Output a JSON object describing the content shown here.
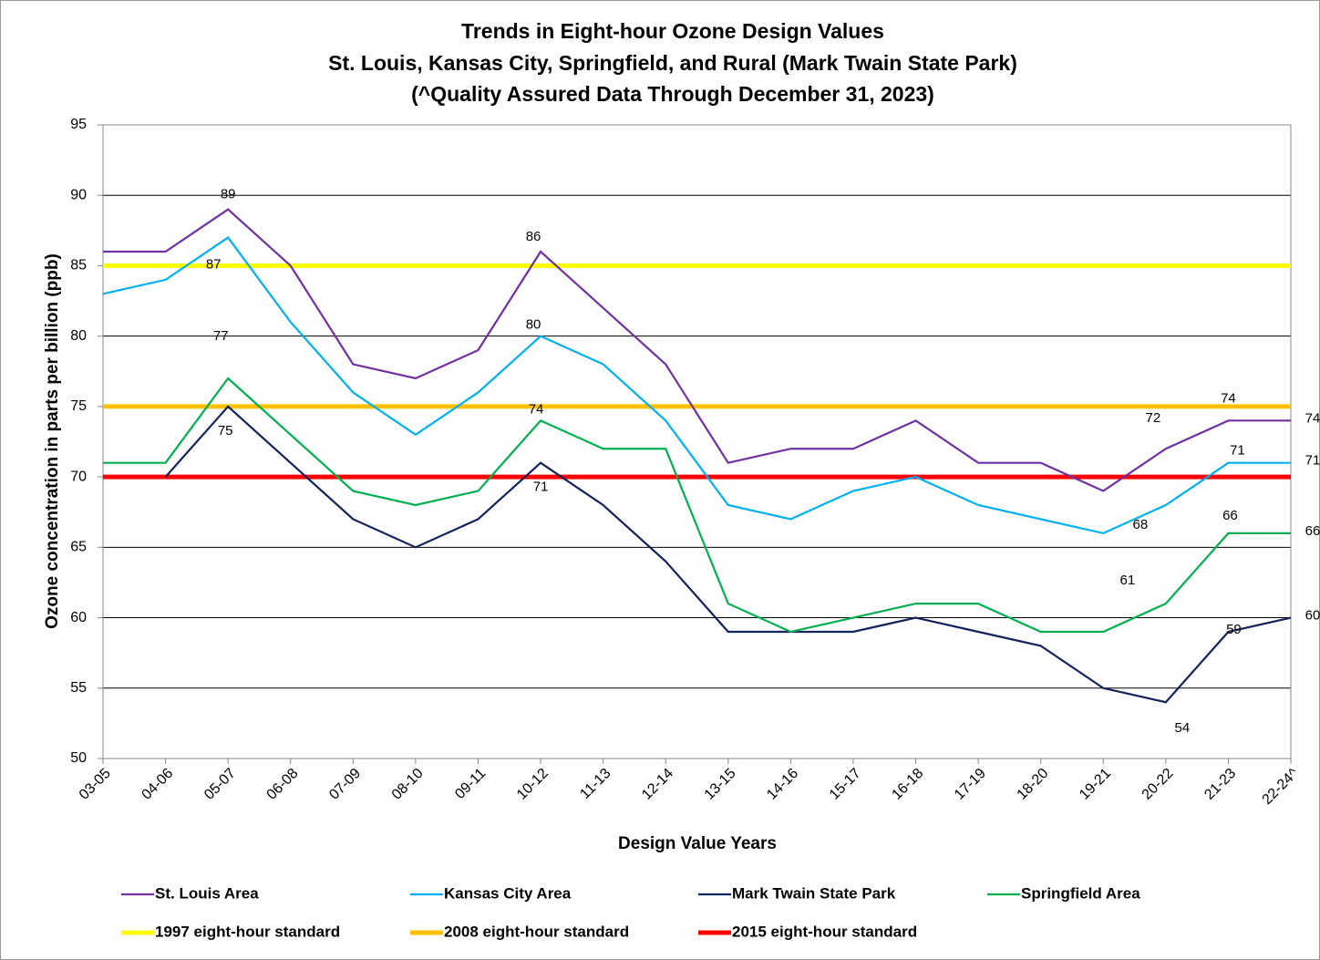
{
  "chart_data": {
    "type": "line",
    "title": [
      "Trends in Eight-hour Ozone Design Values",
      "St. Louis, Kansas City, Springfield, and Rural (Mark Twain State Park)",
      "(^Quality Assured Data Through December 31, 2023)"
    ],
    "x_label": "Design Value Years",
    "y_label": "Ozone concentration in parts per billion (ppb)",
    "categories": [
      "03-05",
      "04-06",
      "05-07",
      "06-08",
      "07-09",
      "08-10",
      "09-11",
      "10-12",
      "11-13",
      "12-14",
      "13-15",
      "14-16",
      "15-17",
      "16-18",
      "17-19",
      "18-20",
      "19-21",
      "20-22",
      "21-23",
      "22-24^"
    ],
    "series": [
      {
        "name": "St. Louis Area",
        "color": "#7030a0",
        "values": [
          86,
          86,
          89,
          85,
          78,
          77,
          79,
          86,
          82,
          78,
          71,
          72,
          72,
          74,
          71,
          71,
          69,
          72,
          74,
          74
        ]
      },
      {
        "name": "Kansas City Area",
        "color": "#00b0f0",
        "values": [
          83,
          84,
          87,
          81,
          76,
          73,
          76,
          80,
          78,
          74,
          68,
          67,
          69,
          70,
          68,
          67,
          66,
          68,
          71,
          71
        ]
      },
      {
        "name": "Mark Twain State Park",
        "color": "#14225a",
        "values": [
          null,
          70,
          75,
          71,
          67,
          65,
          67,
          71,
          68,
          64,
          59,
          59,
          59,
          60,
          59,
          58,
          55,
          54,
          59,
          60
        ]
      },
      {
        "name": "Springfield Area",
        "color": "#00b050",
        "values": [
          71,
          71,
          77,
          73,
          69,
          68,
          69,
          74,
          72,
          72,
          61,
          59,
          60,
          61,
          61,
          59,
          59,
          61,
          66,
          66
        ]
      }
    ],
    "labeled_points": [
      2,
      7,
      17,
      18,
      19
    ],
    "reference_lines": [
      {
        "name": "1997 eight-hour standard",
        "value": 85,
        "color": "#ffff00"
      },
      {
        "name": "2008 eight-hour standard",
        "value": 75,
        "color": "#ffc000"
      },
      {
        "name": "2015 eight-hour standard",
        "value": 70,
        "color": "#ff0000"
      }
    ],
    "ylim": [
      50,
      95
    ],
    "yticks": [
      50,
      55,
      60,
      65,
      70,
      75,
      80,
      85,
      90,
      95
    ],
    "grid": true
  }
}
